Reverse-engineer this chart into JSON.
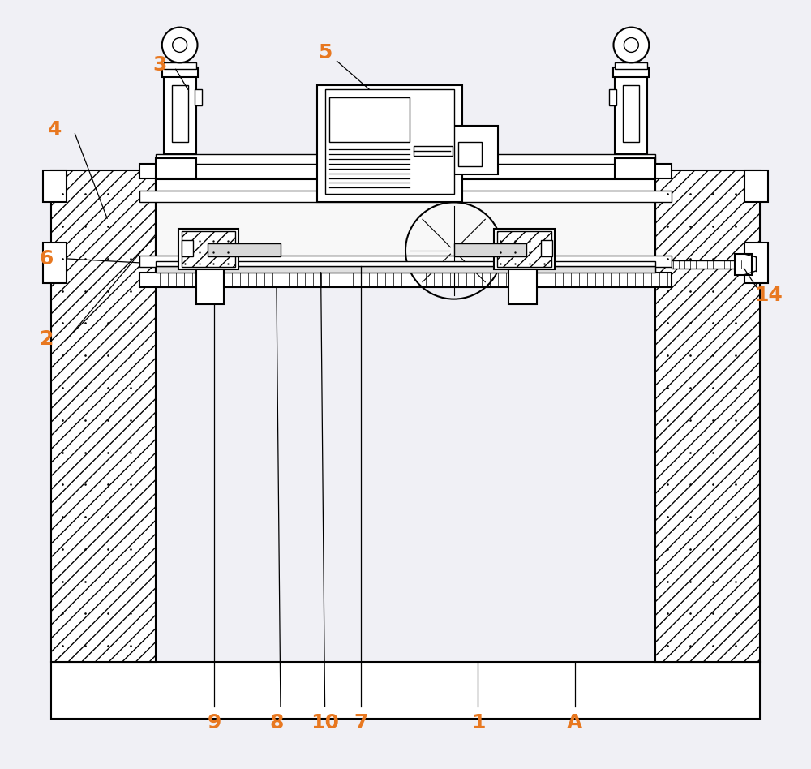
{
  "bg_color": "#f0f0f5",
  "line_color": "#000000",
  "label_color": "#e87820",
  "figsize": [
    10.0,
    9.48
  ],
  "dpi": 100
}
